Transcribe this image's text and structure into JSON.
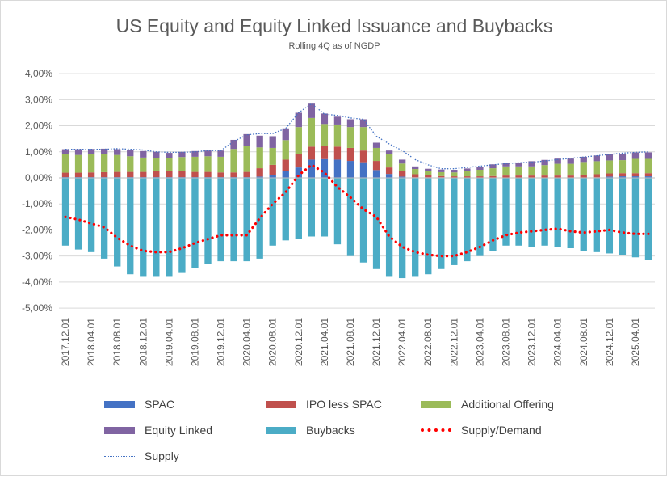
{
  "chart_data": {
    "type": "bar",
    "title": "US Equity and Equity Linked Issuance and Buybacks",
    "subtitle": "Rolling 4Q as of NGDP",
    "y_unit": "percent of NGDP",
    "ylim": [
      -5,
      4
    ],
    "y_ticks": [
      4,
      3,
      2,
      1,
      0,
      -1,
      -2,
      -3,
      -4,
      -5
    ],
    "y_tick_labels": [
      "4,00%",
      "3,00%",
      "2,00%",
      "1,00%",
      "0,00%",
      "-1,00%",
      "-2,00%",
      "-3,00%",
      "-4,00%",
      "-5,00%"
    ],
    "grid": true,
    "categories": [
      "2017.12.01",
      "2018.02.01",
      "2018.04.01",
      "2018.06.01",
      "2018.08.01",
      "2018.10.01",
      "2018.12.01",
      "2019.02.01",
      "2019.04.01",
      "2019.06.01",
      "2019.08.01",
      "2019.10.01",
      "2019.12.01",
      "2020.02.01",
      "2020.04.01",
      "2020.06.01",
      "2020.08.01",
      "2020.10.01",
      "2020.12.01",
      "2021.02.01",
      "2021.04.01",
      "2021.06.01",
      "2021.08.01",
      "2021.10.01",
      "2021.12.01",
      "2022.02.01",
      "2022.04.01",
      "2022.06.01",
      "2022.08.01",
      "2022.10.01",
      "2022.12.01",
      "2023.02.01",
      "2023.04.01",
      "2023.06.01",
      "2023.08.01",
      "2023.10.01",
      "2023.12.01",
      "2024.02.01",
      "2024.04.01",
      "2024.06.01",
      "2024.08.01",
      "2024.10.01",
      "2024.12.01",
      "2025.02.01",
      "2025.04.01",
      "2025.06.01"
    ],
    "x_tick_labels": [
      "2017.12.01",
      "2018.04.01",
      "2018.08.01",
      "2018.12.01",
      "2019.04.01",
      "2019.08.01",
      "2019.12.01",
      "2020.04.01",
      "2020.08.01",
      "2020.12.01",
      "2021.04.01",
      "2021.08.01",
      "2021.12.01",
      "2022.04.01",
      "2022.08.01",
      "2022.12.01",
      "2023.04.01",
      "2023.08.01",
      "2023.12.01",
      "2024.04.01",
      "2024.08.01",
      "2024.12.01",
      "2025.04.01"
    ],
    "bar_series": [
      {
        "name": "SPAC",
        "color": "#4472c4",
        "values": [
          0.03,
          0.03,
          0.03,
          0.03,
          0.03,
          0.03,
          0.03,
          0.03,
          0.03,
          0.03,
          0.03,
          0.03,
          0.03,
          0.03,
          0.03,
          0.05,
          0.1,
          0.25,
          0.4,
          0.7,
          0.72,
          0.7,
          0.65,
          0.6,
          0.3,
          0.15,
          0.05,
          0.02,
          0.02,
          0.02,
          0.01,
          0.01,
          0.01,
          0.01,
          0.01,
          0.01,
          0.01,
          0.01,
          0.01,
          0.01,
          0.01,
          0.02,
          0.05,
          0.06,
          0.06,
          0.06
        ]
      },
      {
        "name": "IPO less SPAC",
        "color": "#c0504d",
        "values": [
          0.17,
          0.17,
          0.18,
          0.19,
          0.2,
          0.2,
          0.2,
          0.22,
          0.23,
          0.22,
          0.2,
          0.2,
          0.18,
          0.18,
          0.2,
          0.32,
          0.4,
          0.45,
          0.5,
          0.5,
          0.5,
          0.5,
          0.5,
          0.45,
          0.35,
          0.25,
          0.2,
          0.12,
          0.08,
          0.05,
          0.05,
          0.05,
          0.05,
          0.06,
          0.08,
          0.08,
          0.08,
          0.08,
          0.08,
          0.08,
          0.1,
          0.12,
          0.12,
          0.12,
          0.12,
          0.12
        ]
      },
      {
        "name": "Additional Offering",
        "color": "#9bbb59",
        "values": [
          0.7,
          0.68,
          0.7,
          0.7,
          0.65,
          0.6,
          0.55,
          0.52,
          0.5,
          0.55,
          0.58,
          0.6,
          0.6,
          0.9,
          1.0,
          0.8,
          0.65,
          0.75,
          1.05,
          1.1,
          0.85,
          0.85,
          0.8,
          0.9,
          0.5,
          0.5,
          0.3,
          0.2,
          0.15,
          0.15,
          0.15,
          0.2,
          0.25,
          0.3,
          0.35,
          0.35,
          0.35,
          0.4,
          0.45,
          0.45,
          0.5,
          0.5,
          0.5,
          0.5,
          0.55,
          0.55
        ]
      },
      {
        "name": "Equity Linked",
        "color": "#8064a2",
        "values": [
          0.2,
          0.22,
          0.2,
          0.2,
          0.22,
          0.24,
          0.25,
          0.23,
          0.2,
          0.2,
          0.22,
          0.22,
          0.24,
          0.35,
          0.45,
          0.45,
          0.45,
          0.45,
          0.55,
          0.55,
          0.4,
          0.3,
          0.3,
          0.3,
          0.2,
          0.15,
          0.15,
          0.1,
          0.1,
          0.1,
          0.1,
          0.1,
          0.1,
          0.15,
          0.15,
          0.15,
          0.2,
          0.2,
          0.2,
          0.2,
          0.2,
          0.22,
          0.25,
          0.25,
          0.25,
          0.25
        ]
      },
      {
        "name": "Buybacks",
        "color": "#4bacc6",
        "values": [
          -2.6,
          -2.75,
          -2.85,
          -3.1,
          -3.4,
          -3.7,
          -3.8,
          -3.8,
          -3.8,
          -3.65,
          -3.45,
          -3.3,
          -3.2,
          -3.2,
          -3.2,
          -3.1,
          -2.6,
          -2.4,
          -2.35,
          -2.25,
          -2.25,
          -2.55,
          -3.0,
          -3.25,
          -3.5,
          -3.8,
          -3.85,
          -3.8,
          -3.7,
          -3.5,
          -3.35,
          -3.2,
          -3.0,
          -2.8,
          -2.6,
          -2.6,
          -2.65,
          -2.6,
          -2.65,
          -2.7,
          -2.8,
          -2.85,
          -2.9,
          -2.95,
          -3.05,
          -3.15
        ]
      }
    ],
    "line_series": [
      {
        "name": "Supply/Demand",
        "color": "#ff0000",
        "style": "dotted",
        "values": [
          -1.5,
          -1.6,
          -1.75,
          -1.9,
          -2.3,
          -2.6,
          -2.8,
          -2.85,
          -2.85,
          -2.7,
          -2.5,
          -2.35,
          -2.2,
          -2.2,
          -2.2,
          -1.55,
          -1.0,
          -0.55,
          0.1,
          0.5,
          0.2,
          -0.35,
          -0.75,
          -1.2,
          -1.5,
          -2.25,
          -2.65,
          -2.85,
          -2.95,
          -3.0,
          -3.0,
          -2.85,
          -2.65,
          -2.4,
          -2.2,
          -2.1,
          -2.05,
          -2.0,
          -1.95,
          -2.05,
          -2.1,
          -2.05,
          -2.0,
          -2.1,
          -2.15,
          -2.15
        ]
      },
      {
        "name": "Supply",
        "color": "#4472c4",
        "style": "thin-dotted",
        "values": [
          1.1,
          1.1,
          1.1,
          1.1,
          1.12,
          1.1,
          1.07,
          1.0,
          0.98,
          0.98,
          1.0,
          1.05,
          1.05,
          1.4,
          1.65,
          1.7,
          1.7,
          1.9,
          2.5,
          2.85,
          2.45,
          2.4,
          2.3,
          2.25,
          1.6,
          1.3,
          1.05,
          0.7,
          0.5,
          0.35,
          0.35,
          0.4,
          0.45,
          0.5,
          0.55,
          0.58,
          0.6,
          0.65,
          0.7,
          0.75,
          0.8,
          0.85,
          0.9,
          0.95,
          0.98,
          1.0
        ]
      }
    ],
    "legend_position": "bottom",
    "legend": [
      "SPAC",
      "IPO less SPAC",
      "Additional Offering",
      "Equity Linked",
      "Buybacks",
      "Supply/Demand",
      "Supply"
    ]
  }
}
